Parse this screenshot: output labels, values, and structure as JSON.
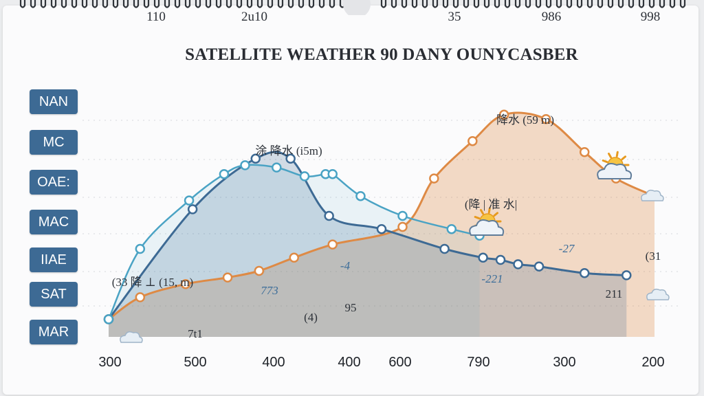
{
  "top_ticks": [
    "110",
    "2u10",
    "35",
    "986",
    "998"
  ],
  "title": "SATELLITE WEATHER 90 DANY OUNYCASBER",
  "side_labels": [
    "NAN",
    "MC",
    "OAE:",
    "MAC",
    "IIAE",
    "SAT",
    "MAR"
  ],
  "colors": {
    "dark_blue": "#3d6a94",
    "teal": "#4aa3c4",
    "orange": "#de8a45",
    "label_bg": "#3d6a94"
  },
  "chart_data": {
    "type": "line",
    "title": "SATELLITE WEATHER 90 DANY OUNYCASBER",
    "x_tick_labels": [
      "300",
      "500",
      "400",
      "400",
      "600",
      "790",
      "300",
      "200"
    ],
    "ylim": [
      0,
      100
    ],
    "grid": true,
    "series": [
      {
        "color": "#3d6a94",
        "points": [
          [
            0,
            8
          ],
          [
            2.4,
            58
          ],
          [
            4.2,
            81
          ],
          [
            5.2,
            81
          ],
          [
            6.3,
            55
          ],
          [
            7.8,
            49
          ],
          [
            9.6,
            40
          ],
          [
            10.7,
            36
          ],
          [
            11.2,
            35
          ],
          [
            11.7,
            33
          ],
          [
            12.3,
            32
          ],
          [
            13.6,
            29
          ],
          [
            14.8,
            28
          ]
        ],
        "values": [
          8,
          58,
          81,
          81,
          55,
          49,
          40,
          36,
          35,
          33,
          32,
          29,
          28
        ]
      },
      {
        "color": "#4aa3c4",
        "points": [
          [
            0,
            8
          ],
          [
            0.9,
            40
          ],
          [
            2.3,
            62
          ],
          [
            3.3,
            74
          ],
          [
            3.9,
            78
          ],
          [
            4.8,
            77
          ],
          [
            5.6,
            73
          ],
          [
            6.2,
            74
          ],
          [
            6.4,
            74
          ],
          [
            7.2,
            64
          ],
          [
            8.4,
            55
          ],
          [
            9.8,
            49
          ],
          [
            10.6,
            46
          ]
        ],
        "values": [
          8,
          40,
          62,
          74,
          78,
          77,
          73,
          74,
          74,
          64,
          55,
          49,
          46
        ]
      },
      {
        "color": "#de8a45",
        "points": [
          [
            0,
            8
          ],
          [
            0.9,
            18
          ],
          [
            2.2,
            24
          ],
          [
            3.4,
            27
          ],
          [
            4.3,
            30
          ],
          [
            5.3,
            36
          ],
          [
            6.4,
            42
          ],
          [
            8.4,
            50
          ],
          [
            9.3,
            72
          ],
          [
            10.4,
            89
          ],
          [
            11.3,
            101
          ],
          [
            12.5,
            99
          ],
          [
            13.6,
            84
          ],
          [
            14.5,
            72
          ],
          [
            15.6,
            64
          ]
        ],
        "values": [
          8,
          18,
          24,
          27,
          30,
          36,
          42,
          50,
          72,
          89,
          101,
          99,
          84,
          72,
          64
        ]
      }
    ],
    "annotations": [
      "降水 (59 m)",
      "涂 降水 (i5m)",
      "(33 降 ⊥ (15, m)",
      "(降 | 准 水|",
      "773",
      "-4",
      "95",
      "(4)",
      "-27",
      "-221",
      "(31",
      "211",
      "7t1"
    ]
  }
}
